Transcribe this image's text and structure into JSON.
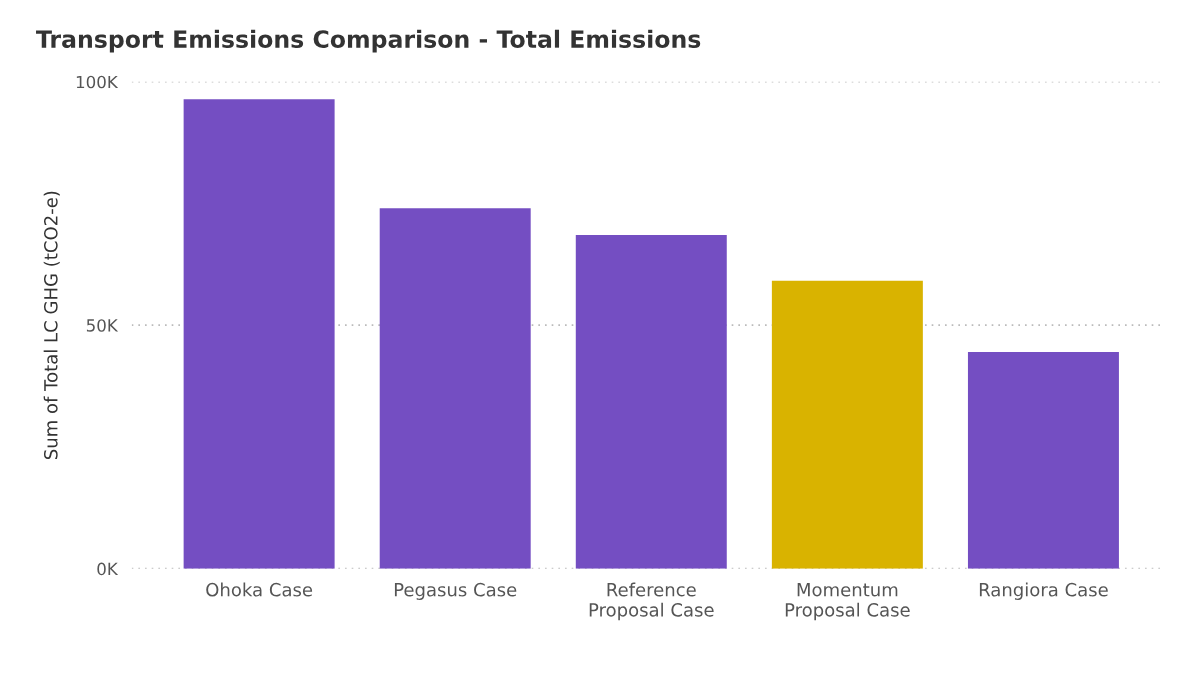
{
  "chart_data": {
    "type": "bar",
    "title": "Transport Emissions Comparison - Total Emissions",
    "ylabel": "Sum of Total LC GHG (tCO2-e)",
    "categories": [
      "Ohoka Case",
      "Pegasus Case",
      "Reference\nProposal Case",
      "Momentum\nProposal Case",
      "Rangiora Case"
    ],
    "values": [
      96400,
      74000,
      68500,
      59100,
      44500
    ],
    "colors": [
      "#744ec2",
      "#744ec2",
      "#744ec2",
      "#d9b300",
      "#744ec2"
    ],
    "ylim": [
      0,
      100000
    ],
    "yticks": [
      {
        "value": 0,
        "label": "0K"
      },
      {
        "value": 50000,
        "label": "50K"
      },
      {
        "value": 100000,
        "label": "100K"
      }
    ],
    "grid": "y"
  }
}
